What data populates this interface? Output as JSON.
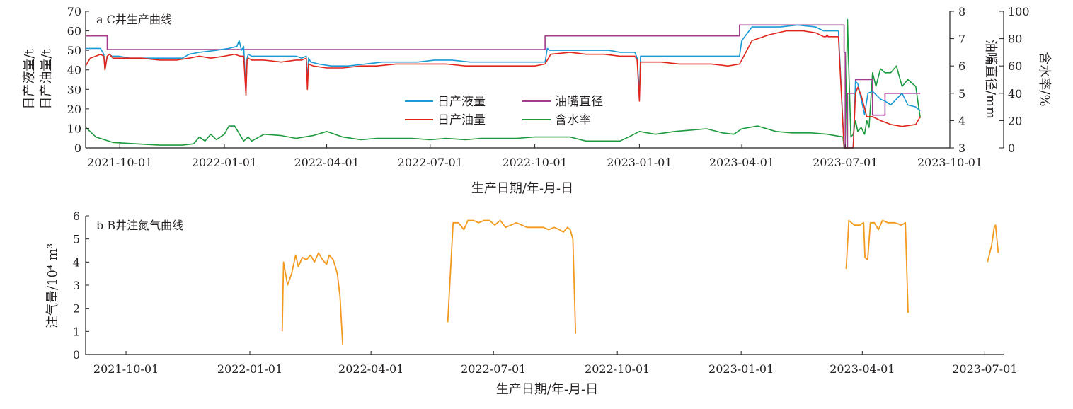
{
  "figure": {
    "panel_a": {
      "title": "a C井生产曲线",
      "y_left_label_1": "日产液量/t",
      "y_left_label_2": "日产油量/t",
      "y_right_label_1": "油嘴直径/mm",
      "y_right_label_2": "含水率/%",
      "x_label": "生产日期/年-月-日",
      "legend": [
        "日产液量",
        "油嘴直径",
        "日产油量",
        "含水率"
      ]
    },
    "panel_b": {
      "title": "b B井注氮气曲线",
      "y_label": "注气量/10⁴ m³",
      "x_label": "生产日期/年-月-日"
    }
  },
  "chart_data": [
    {
      "type": "line",
      "title": "a C井生产曲线",
      "xlabel": "生产日期/年-月-日",
      "xlim": [
        "2021-09-01",
        "2023-10-01"
      ],
      "x_ticks": [
        "2021-10-01",
        "2022-01-01",
        "2022-04-01",
        "2022-07-01",
        "2022-10-01",
        "2023-01-01",
        "2023-04-01",
        "2023-07-01",
        "2023-10-01"
      ],
      "axes": {
        "y_left": {
          "label_1": "日产液量/t",
          "label_2": "日产油量/t",
          "lim": [
            0,
            70
          ],
          "ticks": [
            0,
            10,
            20,
            30,
            40,
            50,
            60,
            70
          ]
        },
        "y_right_inner": {
          "label": "油嘴直径/mm",
          "lim": [
            3,
            8
          ],
          "ticks": [
            3,
            4,
            5,
            6,
            7,
            8
          ]
        },
        "y_right_outer": {
          "label": "含水率/%",
          "lim": [
            0,
            100
          ],
          "ticks": [
            0,
            20,
            40,
            60,
            80,
            100
          ]
        }
      },
      "legend_position": "center",
      "series": [
        {
          "name": "日产液量",
          "axis": "y_left",
          "color": "#1b9ad6",
          "x": [
            "2021-09-01",
            "2021-09-14",
            "2021-09-17",
            "2021-09-18",
            "2021-09-20",
            "2021-09-22",
            "2021-09-24",
            "2021-09-30",
            "2021-10-10",
            "2021-10-25",
            "2021-11-10",
            "2021-11-25",
            "2021-12-01",
            "2021-12-10",
            "2021-12-25",
            "2022-01-05",
            "2022-01-12",
            "2022-01-14",
            "2022-01-16",
            "2022-01-18",
            "2022-01-20",
            "2022-01-21",
            "2022-01-22",
            "2022-01-25",
            "2022-02-05",
            "2022-02-20",
            "2022-03-05",
            "2022-03-10",
            "2022-03-14",
            "2022-03-15",
            "2022-03-16",
            "2022-03-18",
            "2022-03-25",
            "2022-04-05",
            "2022-04-20",
            "2022-05-05",
            "2022-05-20",
            "2022-06-05",
            "2022-06-20",
            "2022-07-05",
            "2022-07-20",
            "2022-08-05",
            "2022-08-20",
            "2022-09-05",
            "2022-09-20",
            "2022-10-10",
            "2022-10-12",
            "2022-10-14",
            "2022-10-20",
            "2022-11-05",
            "2022-11-20",
            "2022-12-05",
            "2022-12-15",
            "2022-12-28",
            "2022-12-30",
            "2023-01-01",
            "2023-01-02",
            "2023-01-05",
            "2023-01-20",
            "2023-02-05",
            "2023-02-20",
            "2023-03-05",
            "2023-03-20",
            "2023-03-30",
            "2023-04-01",
            "2023-04-10",
            "2023-04-25",
            "2023-05-05",
            "2023-05-20",
            "2023-06-05",
            "2023-06-12",
            "2023-06-14",
            "2023-06-15",
            "2023-06-16",
            "2023-06-18",
            "2023-06-25",
            "2023-06-30",
            "2023-07-01",
            "2023-07-02",
            "2023-07-05",
            "2023-07-08",
            "2023-07-10",
            "2023-07-12",
            "2023-07-15",
            "2023-07-18",
            "2023-07-21",
            "2023-07-25",
            "2023-08-01",
            "2023-08-05",
            "2023-08-10",
            "2023-08-15",
            "2023-08-20",
            "2023-08-25",
            "2023-09-01",
            "2023-09-05"
          ],
          "values": [
            51,
            51,
            48,
            40,
            47,
            48,
            47,
            47,
            46,
            46,
            46,
            46,
            48,
            49,
            50,
            51,
            52,
            55,
            50,
            52,
            28,
            46,
            48,
            47,
            47,
            47,
            47,
            46,
            47,
            33,
            46,
            44,
            43,
            42,
            42,
            43,
            44,
            44,
            44,
            45,
            45,
            44,
            44,
            44,
            44,
            44,
            51,
            50,
            50,
            50,
            50,
            50,
            49,
            49,
            46,
            28,
            47,
            47,
            47,
            47,
            47,
            47,
            47,
            47,
            55,
            62,
            62,
            62,
            63,
            62,
            60,
            60,
            60,
            60,
            60,
            60,
            0,
            0,
            0,
            0,
            0,
            34,
            33,
            25,
            17,
            28,
            29,
            25,
            24,
            22,
            25,
            28,
            22,
            21,
            19
          ]
        },
        {
          "name": "日产油量",
          "axis": "y_left",
          "color": "#e1251b",
          "x": [
            "2021-09-01",
            "2021-09-05",
            "2021-09-10",
            "2021-09-14",
            "2021-09-17",
            "2021-09-18",
            "2021-09-20",
            "2021-09-22",
            "2021-09-25",
            "2021-10-05",
            "2021-10-20",
            "2021-11-05",
            "2021-11-20",
            "2021-12-01",
            "2021-12-10",
            "2021-12-20",
            "2022-01-01",
            "2022-01-10",
            "2022-01-15",
            "2022-01-18",
            "2022-01-20",
            "2022-01-21",
            "2022-01-22",
            "2022-01-25",
            "2022-02-05",
            "2022-02-20",
            "2022-03-05",
            "2022-03-10",
            "2022-03-14",
            "2022-03-15",
            "2022-03-16",
            "2022-03-20",
            "2022-04-01",
            "2022-04-15",
            "2022-05-01",
            "2022-05-15",
            "2022-06-01",
            "2022-06-15",
            "2022-07-01",
            "2022-07-15",
            "2022-08-01",
            "2022-08-15",
            "2022-09-01",
            "2022-09-15",
            "2022-10-01",
            "2022-10-10",
            "2022-10-15",
            "2022-11-01",
            "2022-11-15",
            "2022-12-01",
            "2022-12-15",
            "2022-12-28",
            "2022-12-30",
            "2023-01-01",
            "2023-01-02",
            "2023-01-08",
            "2023-01-20",
            "2023-02-05",
            "2023-02-20",
            "2023-03-05",
            "2023-03-20",
            "2023-03-30",
            "2023-04-01",
            "2023-04-10",
            "2023-04-25",
            "2023-05-10",
            "2023-05-25",
            "2023-06-05",
            "2023-06-12",
            "2023-06-14",
            "2023-06-15",
            "2023-06-16",
            "2023-06-18",
            "2023-06-25",
            "2023-06-30",
            "2023-07-01",
            "2023-07-02",
            "2023-07-05",
            "2023-07-08",
            "2023-07-10",
            "2023-07-12",
            "2023-07-15",
            "2023-07-20",
            "2023-07-25",
            "2023-08-01",
            "2023-08-10",
            "2023-08-20",
            "2023-09-01",
            "2023-09-05"
          ],
          "values": [
            42,
            46,
            47,
            48,
            47,
            40,
            47,
            48,
            46,
            46,
            46,
            45,
            45,
            46,
            47,
            46,
            47,
            48,
            47,
            47,
            27,
            45,
            46,
            45,
            45,
            44,
            45,
            45,
            46,
            30,
            43,
            42,
            41,
            41,
            42,
            42,
            43,
            43,
            43,
            43,
            42,
            42,
            42,
            42,
            42,
            43,
            48,
            49,
            48,
            48,
            47,
            47,
            45,
            24,
            44,
            44,
            44,
            43,
            43,
            43,
            42,
            43,
            45,
            55,
            58,
            60,
            60,
            59,
            57,
            57,
            58,
            57,
            57,
            57,
            0,
            0,
            0,
            0,
            0,
            28,
            31,
            27,
            16,
            16,
            14,
            12,
            11,
            12,
            16
          ]
        },
        {
          "name": "油嘴直径",
          "axis": "y_right_inner",
          "color": "#a43b8c",
          "x": [
            "2021-09-01",
            "2021-09-20",
            "2021-09-20",
            "2022-10-10",
            "2022-10-10",
            "2023-03-30",
            "2023-03-30",
            "2023-06-30",
            "2023-06-30",
            "2023-07-01",
            "2023-07-01",
            "2023-07-03",
            "2023-07-03",
            "2023-07-10",
            "2023-07-10",
            "2023-07-25",
            "2023-07-25",
            "2023-08-05",
            "2023-08-05",
            "2023-08-10",
            "2023-08-10",
            "2023-09-05"
          ],
          "values": [
            7.1,
            7.1,
            6.6,
            6.6,
            7.1,
            7.1,
            7.5,
            7.5,
            6.5,
            6.5,
            3.0,
            3.0,
            5.0,
            5.0,
            5.5,
            5.5,
            4.2,
            4.2,
            5.0,
            5.0,
            5.0,
            5.0
          ]
        },
        {
          "name": "含水率",
          "axis": "y_right_outer",
          "color": "#1d9a3e",
          "x": [
            "2021-09-01",
            "2021-09-10",
            "2021-09-25",
            "2021-10-15",
            "2021-11-05",
            "2021-11-25",
            "2021-12-05",
            "2021-12-10",
            "2021-12-15",
            "2021-12-20",
            "2021-12-25",
            "2022-01-01",
            "2022-01-05",
            "2022-01-10",
            "2022-01-18",
            "2022-01-22",
            "2022-01-25",
            "2022-02-05",
            "2022-02-20",
            "2022-03-05",
            "2022-03-20",
            "2022-04-01",
            "2022-04-15",
            "2022-05-01",
            "2022-05-15",
            "2022-06-01",
            "2022-06-15",
            "2022-07-01",
            "2022-07-15",
            "2022-08-01",
            "2022-08-15",
            "2022-09-01",
            "2022-09-15",
            "2022-10-01",
            "2022-10-15",
            "2022-11-01",
            "2022-11-15",
            "2022-12-01",
            "2022-12-15",
            "2022-12-25",
            "2023-01-01",
            "2023-01-15",
            "2023-02-01",
            "2023-02-15",
            "2023-03-01",
            "2023-03-15",
            "2023-03-25",
            "2023-04-01",
            "2023-04-15",
            "2023-05-01",
            "2023-05-15",
            "2023-06-01",
            "2023-06-15",
            "2023-06-29",
            "2023-06-30",
            "2023-07-01",
            "2023-07-03",
            "2023-07-04",
            "2023-07-06",
            "2023-07-08",
            "2023-07-10",
            "2023-07-12",
            "2023-07-15",
            "2023-07-18",
            "2023-07-20",
            "2023-07-22",
            "2023-07-25",
            "2023-07-28",
            "2023-08-01",
            "2023-08-05",
            "2023-08-10",
            "2023-08-15",
            "2023-08-20",
            "2023-08-25",
            "2023-09-01",
            "2023-09-05"
          ],
          "values": [
            15,
            8,
            4,
            3,
            2,
            2,
            3,
            8,
            5,
            10,
            6,
            10,
            16,
            16,
            5,
            8,
            5,
            10,
            9,
            7,
            9,
            12,
            8,
            6,
            7,
            7,
            7,
            6,
            7,
            6,
            7,
            7,
            7,
            8,
            8,
            8,
            5,
            5,
            5,
            9,
            12,
            10,
            12,
            13,
            14,
            11,
            10,
            14,
            16,
            12,
            11,
            11,
            10,
            8,
            0,
            0,
            94,
            62,
            8,
            10,
            20,
            12,
            15,
            10,
            20,
            15,
            55,
            45,
            58,
            55,
            55,
            60,
            45,
            50,
            45,
            22
          ]
        }
      ]
    },
    {
      "type": "line",
      "title": "b B井注氮气曲线",
      "xlabel": "生产日期/年-月-日",
      "ylabel": "注气量/10⁴ m³",
      "xlim": [
        "2021-09-01",
        "2023-07-15"
      ],
      "ylim": [
        0,
        6
      ],
      "x_ticks": [
        "2021-10-01",
        "2022-01-01",
        "2022-04-01",
        "2022-07-01",
        "2022-10-01",
        "2023-01-01",
        "2023-04-01",
        "2023-07-01"
      ],
      "y_ticks": [
        0,
        1,
        2,
        3,
        4,
        5,
        6
      ],
      "series": [
        {
          "name": "",
          "color": "#f39a1e",
          "segments": [
            {
              "x": [
                "2022-01-25",
                "2022-01-26",
                "2022-01-29",
                "2022-02-01",
                "2022-02-04",
                "2022-02-06",
                "2022-02-09",
                "2022-02-12",
                "2022-02-15",
                "2022-02-18",
                "2022-02-21",
                "2022-02-24",
                "2022-02-27",
                "2022-03-01",
                "2022-03-04",
                "2022-03-07",
                "2022-03-09",
                "2022-03-11"
              ],
              "y": [
                1.0,
                4.0,
                3.0,
                3.5,
                4.3,
                3.8,
                4.2,
                4.1,
                4.3,
                4.0,
                4.4,
                4.1,
                3.9,
                4.3,
                4.1,
                3.5,
                2.5,
                0.4
              ]
            },
            {
              "x": [
                "2022-05-28",
                "2022-06-01",
                "2022-06-05",
                "2022-06-09",
                "2022-06-12",
                "2022-06-16",
                "2022-06-20",
                "2022-06-24",
                "2022-06-28",
                "2022-07-02",
                "2022-07-06",
                "2022-07-10",
                "2022-07-14",
                "2022-07-18",
                "2022-07-22",
                "2022-07-26",
                "2022-07-30",
                "2022-08-03",
                "2022-08-07",
                "2022-08-11",
                "2022-08-15",
                "2022-08-19",
                "2022-08-22",
                "2022-08-25",
                "2022-08-27",
                "2022-08-29",
                "2022-08-31"
              ],
              "y": [
                1.4,
                5.7,
                5.7,
                5.4,
                5.8,
                5.8,
                5.7,
                5.8,
                5.8,
                5.6,
                5.8,
                5.5,
                5.6,
                5.7,
                5.6,
                5.5,
                5.5,
                5.5,
                5.5,
                5.4,
                5.5,
                5.4,
                5.3,
                5.5,
                5.4,
                5.0,
                0.9
              ]
            },
            {
              "x": [
                "2023-03-20",
                "2023-03-22",
                "2023-03-26",
                "2023-03-30",
                "2023-04-02",
                "2023-04-03",
                "2023-04-05",
                "2023-04-07",
                "2023-04-10",
                "2023-04-13",
                "2023-04-16",
                "2023-04-20",
                "2023-04-25",
                "2023-04-30",
                "2023-05-03",
                "2023-05-05"
              ],
              "y": [
                3.7,
                5.8,
                5.6,
                5.6,
                5.7,
                4.2,
                4.1,
                5.7,
                5.7,
                5.4,
                5.8,
                5.7,
                5.7,
                5.6,
                5.7,
                1.8
              ]
            },
            {
              "x": [
                "2023-07-03",
                "2023-07-06",
                "2023-07-08",
                "2023-07-09",
                "2023-07-11"
              ],
              "y": [
                4.0,
                4.7,
                5.5,
                5.6,
                4.4
              ]
            }
          ]
        }
      ]
    }
  ]
}
